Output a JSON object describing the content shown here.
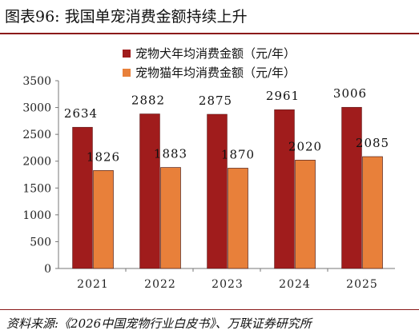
{
  "figure": {
    "title": "图表96:  我国单宠消费金额持续上升",
    "source": "资料来源:《2026中国宠物行业白皮书》、万联证券研究所"
  },
  "colors": {
    "rule": "#8b1a1a",
    "dog_series": "#a01c1c",
    "cat_series": "#e8803a"
  },
  "chart_data": {
    "type": "bar",
    "title": "",
    "xlabel": "",
    "ylabel": "",
    "categories": [
      "2021",
      "2022",
      "2023",
      "2024",
      "2025"
    ],
    "series": [
      {
        "name": "宠物犬年均消费金额（元/年）",
        "values": [
          2634,
          2882,
          2875,
          2961,
          3006
        ]
      },
      {
        "name": "宠物猫年均消费金额（元/年）",
        "values": [
          1826,
          1883,
          1870,
          2020,
          2085
        ]
      }
    ],
    "ylim": [
      0,
      3500
    ],
    "yticks": [
      0,
      500,
      1000,
      1500,
      2000,
      2500,
      3000,
      3500
    ],
    "grid": false,
    "legend": "top-center",
    "data_labels": true
  }
}
